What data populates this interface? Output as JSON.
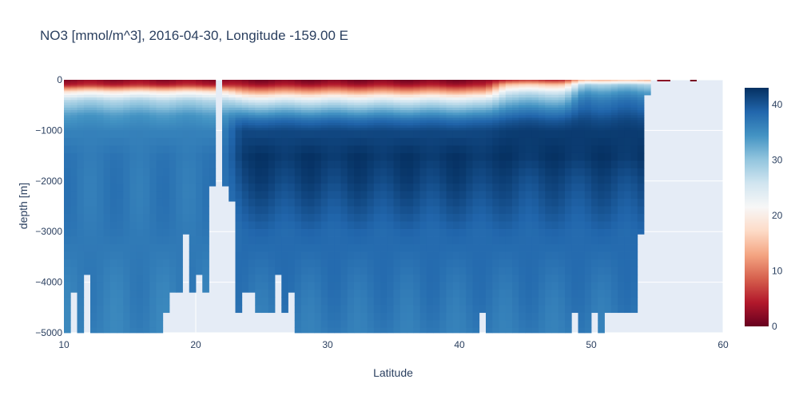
{
  "chart_data": {
    "type": "heatmap",
    "title": "NO3 [mmol/m^3], 2016-04-30, Longitude -159.00 E",
    "xlabel": "Latitude",
    "ylabel": "depth [m]",
    "xlim": [
      10,
      60
    ],
    "ylim": [
      -5000,
      0
    ],
    "x_ticks": [
      10,
      20,
      30,
      40,
      50,
      60
    ],
    "y_ticks": [
      0,
      -1000,
      -2000,
      -3000,
      -4000,
      -5000
    ],
    "x_tick_labels": [
      "10",
      "20",
      "30",
      "40",
      "50",
      "60"
    ],
    "y_tick_labels": [
      "0",
      "−1000",
      "−2000",
      "−3000",
      "−4000",
      "−5000"
    ],
    "colorbar": {
      "colorscale": "RdBu",
      "range": [
        0,
        43
      ],
      "ticks": [
        0,
        10,
        20,
        30,
        40
      ],
      "tick_labels": [
        "0",
        "10",
        "20",
        "30",
        "40"
      ]
    },
    "grid": true,
    "plot_background": "#e5ecf6",
    "cell_resolution_deg": 0.5,
    "depth_profiles": [
      {
        "lat_max": 22,
        "z": [
          [
            0,
            2
          ],
          [
            -100,
            5
          ],
          [
            -250,
            20
          ],
          [
            -400,
            28
          ],
          [
            -700,
            34
          ],
          [
            -1000,
            36
          ],
          [
            -1500,
            37
          ],
          [
            -2000,
            37
          ],
          [
            -3000,
            37
          ],
          [
            -5000,
            36
          ]
        ]
      },
      {
        "lat_max": 42,
        "z": [
          [
            0,
            1
          ],
          [
            -100,
            4
          ],
          [
            -250,
            14
          ],
          [
            -400,
            25
          ],
          [
            -600,
            32
          ],
          [
            -800,
            38
          ],
          [
            -1000,
            41
          ],
          [
            -1500,
            42.5
          ],
          [
            -2000,
            41.5
          ],
          [
            -3000,
            38.5
          ],
          [
            -5000,
            36.5
          ]
        ]
      },
      {
        "lat_max": 48,
        "z": [
          [
            0,
            5
          ],
          [
            -100,
            16
          ],
          [
            -250,
            26
          ],
          [
            -400,
            31
          ],
          [
            -600,
            36
          ],
          [
            -800,
            40
          ],
          [
            -1000,
            42
          ],
          [
            -1500,
            42.5
          ],
          [
            -2000,
            41
          ],
          [
            -3000,
            38.5
          ],
          [
            -5000,
            36.5
          ]
        ]
      },
      {
        "lat_max": 55,
        "z": [
          [
            0,
            14
          ],
          [
            -100,
            29
          ],
          [
            -250,
            34
          ],
          [
            -400,
            37
          ],
          [
            -600,
            39
          ],
          [
            -800,
            41
          ],
          [
            -1000,
            42
          ],
          [
            -1500,
            42.5
          ],
          [
            -2000,
            41
          ],
          [
            -3000,
            38.5
          ],
          [
            -5000,
            36.5
          ]
        ]
      }
    ],
    "seafloor_depth": [
      {
        "from": 10.0,
        "to": 10.5,
        "depth": -5000
      },
      {
        "from": 10.5,
        "to": 11.0,
        "depth": -4200
      },
      {
        "from": 11.0,
        "to": 11.5,
        "depth": -5000
      },
      {
        "from": 11.5,
        "to": 12.0,
        "depth": -3850
      },
      {
        "from": 12.0,
        "to": 17.5,
        "depth": -5000
      },
      {
        "from": 17.5,
        "to": 18.0,
        "depth": -4600
      },
      {
        "from": 18.0,
        "to": 18.5,
        "depth": -4200
      },
      {
        "from": 18.5,
        "to": 19.0,
        "depth": -4200
      },
      {
        "from": 19.0,
        "to": 19.5,
        "depth": -3050
      },
      {
        "from": 19.5,
        "to": 20.0,
        "depth": -4200
      },
      {
        "from": 20.0,
        "to": 20.5,
        "depth": -3850
      },
      {
        "from": 20.5,
        "to": 21.0,
        "depth": -4200
      },
      {
        "from": 21.0,
        "to": 21.5,
        "depth": -2100
      },
      {
        "from": 21.5,
        "to": 22.0,
        "depth": 0
      },
      {
        "from": 22.0,
        "to": 22.5,
        "depth": -2100
      },
      {
        "from": 22.5,
        "to": 23.0,
        "depth": -2400
      },
      {
        "from": 23.0,
        "to": 23.5,
        "depth": -4600
      },
      {
        "from": 23.5,
        "to": 24.0,
        "depth": -4200
      },
      {
        "from": 24.0,
        "to": 24.5,
        "depth": -4200
      },
      {
        "from": 24.5,
        "to": 25.5,
        "depth": -4600
      },
      {
        "from": 25.5,
        "to": 26.0,
        "depth": -4600
      },
      {
        "from": 26.0,
        "to": 26.5,
        "depth": -3850
      },
      {
        "from": 26.5,
        "to": 27.0,
        "depth": -4600
      },
      {
        "from": 27.0,
        "to": 27.5,
        "depth": -4200
      },
      {
        "from": 27.5,
        "to": 41.5,
        "depth": -5000
      },
      {
        "from": 41.5,
        "to": 42.0,
        "depth": -4600
      },
      {
        "from": 42.0,
        "to": 48.5,
        "depth": -5000
      },
      {
        "from": 48.5,
        "to": 49.0,
        "depth": -4600
      },
      {
        "from": 49.0,
        "to": 50.0,
        "depth": -5000
      },
      {
        "from": 50.0,
        "to": 50.5,
        "depth": -4600
      },
      {
        "from": 50.5,
        "to": 51.0,
        "depth": -5000
      },
      {
        "from": 51.0,
        "to": 53.5,
        "depth": -4600
      },
      {
        "from": 53.5,
        "to": 54.0,
        "depth": -3050
      },
      {
        "from": 54.0,
        "to": 54.5,
        "depth": -300
      },
      {
        "from": 54.5,
        "to": 60.0,
        "depth": 0
      }
    ],
    "surface_patches": [
      {
        "lat_from": 55.0,
        "lat_to": 56.0,
        "depth_to": -20,
        "value": 2
      },
      {
        "lat_from": 57.5,
        "lat_to": 58.0,
        "depth_to": -30,
        "value": 1
      }
    ]
  }
}
